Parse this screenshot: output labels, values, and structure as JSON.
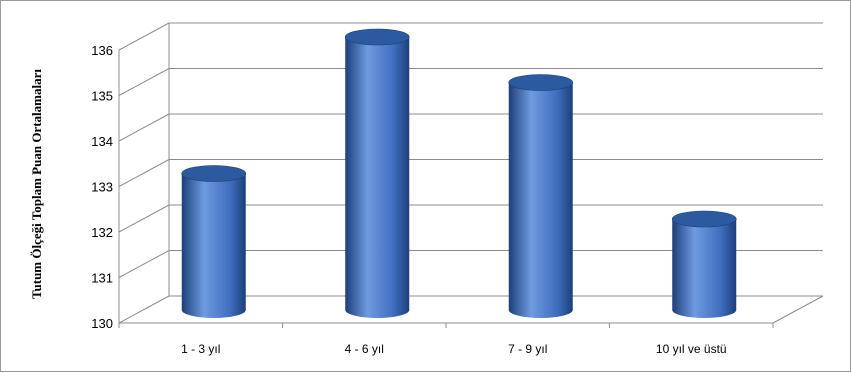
{
  "colors": {
    "bar_light": "#6e9be0",
    "bar_mid": "#3f6fbf",
    "bar_dark": "#1d3f7a",
    "bar_top": "#2c5aa0",
    "grid": "#8c8c8c"
  },
  "chart_data": {
    "type": "bar",
    "style": "3d-cylinder",
    "categories": [
      "1 - 3 yıl",
      "4 - 6 yıl",
      "7 - 9 yıl",
      "10 yıl ve üstü"
    ],
    "values": [
      133,
      136,
      135,
      132
    ],
    "ylabel": "Tutum Ölçeği Toplam Puan Ortalamaları",
    "ylim": [
      130,
      136
    ],
    "yticks": [
      "130",
      "131",
      "132",
      "133",
      "134",
      "135",
      "136"
    ],
    "grid": true,
    "legend": "none"
  }
}
